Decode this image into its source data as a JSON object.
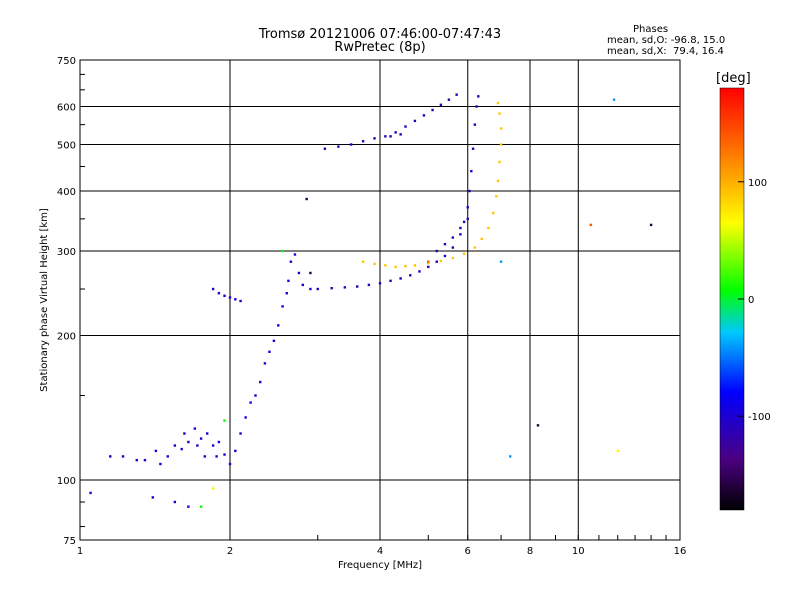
{
  "header": {
    "title_line1": "Tromsø 20121006 07:46:00-07:47:43",
    "title_line2": "RwPretec (8p)"
  },
  "stats": {
    "heading": "Phases",
    "line_o": "mean, sd,O: -96.8, 15.0",
    "line_x": "mean, sd,X:  79.4, 16.4"
  },
  "chart_data": {
    "type": "scatter",
    "xlabel": "Frequency [MHz]",
    "ylabel": "Stationary phase Virtual Height [km]",
    "xscale": "log",
    "yscale": "log",
    "xlim": [
      1,
      16
    ],
    "ylim": [
      75,
      750
    ],
    "x_ticks": [
      1,
      2,
      4,
      6,
      8,
      10,
      16
    ],
    "y_ticks": [
      75,
      100,
      200,
      300,
      400,
      500,
      600,
      750
    ],
    "grid": true,
    "colorbar": {
      "label": "[deg]",
      "range": [
        -180,
        180
      ],
      "ticks": [
        100,
        0,
        -100
      ]
    },
    "series": [
      {
        "phase": -100,
        "points": [
          [
            1.05,
            94
          ],
          [
            1.15,
            112
          ],
          [
            1.22,
            112
          ],
          [
            1.3,
            110
          ],
          [
            1.35,
            110
          ],
          [
            1.42,
            115
          ],
          [
            1.45,
            108
          ],
          [
            1.5,
            112
          ],
          [
            1.55,
            118
          ],
          [
            1.6,
            116
          ],
          [
            1.62,
            125
          ],
          [
            1.65,
            120
          ],
          [
            1.7,
            128
          ],
          [
            1.72,
            118
          ],
          [
            1.75,
            122
          ],
          [
            1.78,
            112
          ],
          [
            1.8,
            125
          ],
          [
            1.85,
            118
          ],
          [
            1.88,
            112
          ],
          [
            1.9,
            120
          ],
          [
            1.95,
            113
          ],
          [
            2.0,
            108
          ],
          [
            2.05,
            115
          ],
          [
            2.1,
            125
          ],
          [
            2.15,
            135
          ],
          [
            2.2,
            145
          ],
          [
            2.25,
            150
          ],
          [
            2.3,
            160
          ],
          [
            2.35,
            175
          ],
          [
            2.4,
            185
          ],
          [
            2.45,
            195
          ],
          [
            2.5,
            210
          ],
          [
            2.55,
            230
          ],
          [
            2.6,
            245
          ],
          [
            2.62,
            260
          ],
          [
            2.65,
            285
          ],
          [
            2.7,
            295
          ],
          [
            2.75,
            270
          ],
          [
            2.8,
            255
          ],
          [
            2.9,
            250
          ],
          [
            1.85,
            250
          ],
          [
            1.9,
            245
          ],
          [
            1.95,
            242
          ],
          [
            2.0,
            240
          ],
          [
            2.05,
            238
          ],
          [
            2.1,
            236
          ],
          [
            1.4,
            92
          ],
          [
            1.55,
            90
          ],
          [
            1.65,
            88
          ]
        ]
      },
      {
        "phase": -110,
        "points": [
          [
            3.0,
            250
          ],
          [
            3.2,
            251
          ],
          [
            3.4,
            252
          ],
          [
            3.6,
            253
          ],
          [
            3.8,
            255
          ],
          [
            4.0,
            257
          ],
          [
            4.2,
            260
          ],
          [
            4.4,
            263
          ],
          [
            4.6,
            267
          ],
          [
            4.8,
            272
          ],
          [
            5.0,
            278
          ],
          [
            5.2,
            285
          ],
          [
            5.4,
            293
          ],
          [
            5.6,
            305
          ],
          [
            5.8,
            325
          ],
          [
            5.9,
            345
          ],
          [
            6.0,
            370
          ],
          [
            6.05,
            400
          ],
          [
            6.1,
            440
          ],
          [
            6.15,
            490
          ],
          [
            6.2,
            550
          ],
          [
            6.25,
            600
          ],
          [
            6.3,
            630
          ],
          [
            3.1,
            490
          ],
          [
            3.3,
            495
          ],
          [
            3.5,
            500
          ],
          [
            3.7,
            508
          ],
          [
            3.9,
            515
          ],
          [
            4.1,
            520
          ],
          [
            4.3,
            530
          ],
          [
            4.5,
            545
          ],
          [
            4.7,
            560
          ],
          [
            4.9,
            575
          ],
          [
            5.1,
            590
          ],
          [
            5.3,
            605
          ],
          [
            5.5,
            620
          ],
          [
            5.7,
            635
          ],
          [
            5.2,
            300
          ],
          [
            5.4,
            310
          ],
          [
            5.6,
            320
          ],
          [
            5.8,
            335
          ],
          [
            6.0,
            350
          ],
          [
            4.2,
            520
          ],
          [
            4.4,
            525
          ]
        ]
      },
      {
        "phase": 90,
        "points": [
          [
            3.7,
            285
          ],
          [
            3.9,
            282
          ],
          [
            4.1,
            280
          ],
          [
            4.3,
            278
          ],
          [
            4.5,
            279
          ],
          [
            4.7,
            280
          ],
          [
            5.0,
            283
          ],
          [
            5.3,
            286
          ],
          [
            5.6,
            290
          ],
          [
            5.9,
            296
          ],
          [
            6.2,
            305
          ],
          [
            6.4,
            318
          ],
          [
            6.6,
            335
          ],
          [
            6.75,
            360
          ],
          [
            6.85,
            390
          ],
          [
            6.9,
            420
          ],
          [
            6.95,
            460
          ],
          [
            7.0,
            500
          ],
          [
            7.0,
            540
          ],
          [
            6.95,
            580
          ],
          [
            6.9,
            610
          ]
        ]
      },
      {
        "phase": 70,
        "points": [
          [
            1.85,
            96
          ],
          [
            10.6,
            340
          ],
          [
            12.0,
            115
          ]
        ]
      },
      {
        "phase": 10,
        "points": [
          [
            1.75,
            88
          ],
          [
            1.95,
            133
          ],
          [
            2.55,
            300
          ]
        ]
      },
      {
        "phase": -40,
        "points": [
          [
            11.8,
            620
          ],
          [
            7.3,
            112
          ],
          [
            7.0,
            285
          ]
        ]
      },
      {
        "phase": -160,
        "points": [
          [
            2.85,
            385
          ],
          [
            2.9,
            270
          ],
          [
            8.3,
            130
          ],
          [
            14.0,
            340
          ]
        ]
      },
      {
        "phase": 140,
        "points": [
          [
            10.6,
            340
          ],
          [
            5.0,
            285
          ]
        ]
      }
    ]
  }
}
